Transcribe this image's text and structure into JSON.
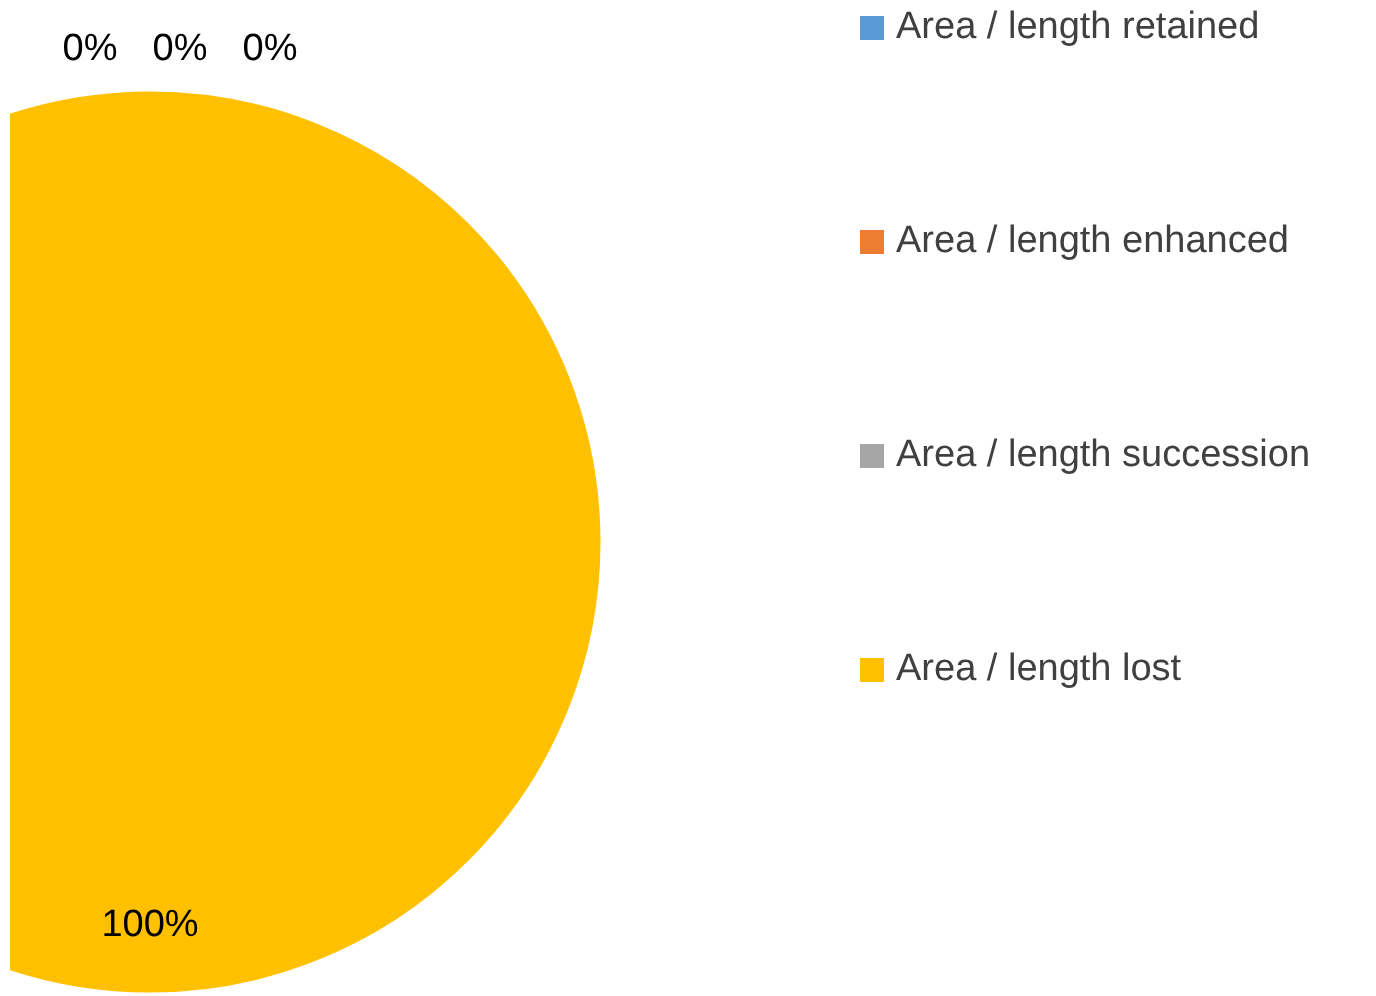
{
  "chart_data": {
    "type": "pie",
    "categories": [
      "Area / length retained",
      "Area / length enhanced",
      "Area / length succession",
      "Area / length lost"
    ],
    "values": [
      0,
      0,
      0,
      100
    ],
    "colors": [
      "#5b9bd5",
      "#ed7d31",
      "#a5a5a5",
      "#ffc000"
    ],
    "value_labels": [
      "0%",
      "0%",
      "0%",
      "100%"
    ],
    "legend": "right"
  }
}
